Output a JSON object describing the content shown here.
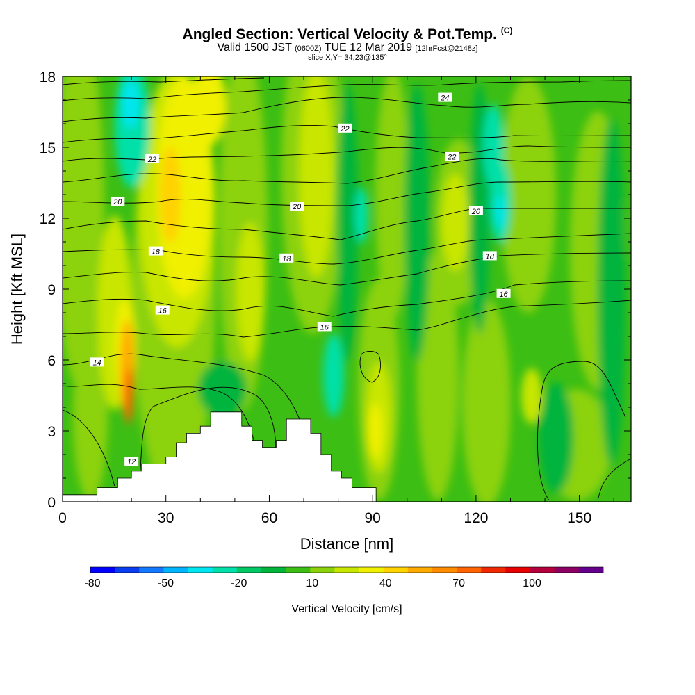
{
  "header": {
    "title": "Angled Section: Vertical Velocity & Pot.Temp.",
    "title_units": "(C)",
    "subtitle_main": "Valid 1500 JST",
    "subtitle_utc": "(0600Z)",
    "subtitle_date": "TUE 12 Mar 2019",
    "subtitle_fcst": "[12hrFcst@2148z]",
    "slice": "slice X,Y= 34,23@135°"
  },
  "chart_data": {
    "type": "heatmap",
    "xlabel": "Distance [nm]",
    "ylabel": "Height [Kft MSL]",
    "xlim": [
      0,
      165
    ],
    "ylim": [
      0,
      18
    ],
    "xticks": [
      "0",
      "30",
      "60",
      "90",
      "120",
      "150"
    ],
    "yticks": [
      "0",
      "3",
      "6",
      "9",
      "12",
      "15",
      "18"
    ],
    "colorbar": {
      "label": "Vertical Velocity [cm/s]",
      "ticks": [
        "-80",
        "-50",
        "-20",
        "10",
        "40",
        "70",
        "100"
      ],
      "colors": [
        "#0000ff",
        "#0a3cf0",
        "#1478ff",
        "#00b4ff",
        "#00e6f0",
        "#00e0a8",
        "#00c864",
        "#00b43c",
        "#3cbe14",
        "#8cd20a",
        "#c8e600",
        "#f0f000",
        "#ffd200",
        "#ffaa00",
        "#ff8c00",
        "#ff6400",
        "#f02800",
        "#e60000",
        "#b4003c",
        "#8c0064",
        "#64008c"
      ]
    },
    "terrain_profile_kft": [
      [
        0,
        0.3
      ],
      [
        10,
        0.3
      ],
      [
        10,
        0.6
      ],
      [
        16,
        0.6
      ],
      [
        16,
        1.0
      ],
      [
        20,
        1.0
      ],
      [
        20,
        1.3
      ],
      [
        23,
        1.3
      ],
      [
        23,
        1.6
      ],
      [
        30,
        1.6
      ],
      [
        30,
        1.9
      ],
      [
        33,
        1.9
      ],
      [
        33,
        2.5
      ],
      [
        36,
        2.5
      ],
      [
        36,
        2.9
      ],
      [
        40,
        2.9
      ],
      [
        40,
        3.2
      ],
      [
        43,
        3.2
      ],
      [
        43,
        3.8
      ],
      [
        52,
        3.8
      ],
      [
        52,
        3.2
      ],
      [
        55,
        3.2
      ],
      [
        55,
        2.6
      ],
      [
        58,
        2.6
      ],
      [
        58,
        2.3
      ],
      [
        62,
        2.3
      ],
      [
        62,
        2.6
      ],
      [
        65,
        2.6
      ],
      [
        65,
        3.5
      ],
      [
        72,
        3.5
      ],
      [
        72,
        2.9
      ],
      [
        75,
        2.9
      ],
      [
        75,
        2.0
      ],
      [
        78,
        2.0
      ],
      [
        78,
        1.3
      ],
      [
        81,
        1.3
      ],
      [
        81,
        1.0
      ],
      [
        84,
        1.0
      ],
      [
        84,
        0.6
      ],
      [
        91,
        0.6
      ],
      [
        91,
        0
      ]
    ],
    "theta_contours": [
      {
        "label": "12",
        "x": 20,
        "y": 1.7
      },
      {
        "label": "14",
        "x": 10,
        "y": 5.9
      },
      {
        "label": "16",
        "x": 29,
        "y": 8.1
      },
      {
        "label": "16",
        "x": 76,
        "y": 7.4
      },
      {
        "label": "16",
        "x": 128,
        "y": 8.8
      },
      {
        "label": "18",
        "x": 27,
        "y": 10.6
      },
      {
        "label": "18",
        "x": 65,
        "y": 10.3
      },
      {
        "label": "18",
        "x": 124,
        "y": 10.4
      },
      {
        "label": "20",
        "x": 16,
        "y": 12.7
      },
      {
        "label": "20",
        "x": 68,
        "y": 12.5
      },
      {
        "label": "20",
        "x": 120,
        "y": 12.3
      },
      {
        "label": "22",
        "x": 26,
        "y": 14.5
      },
      {
        "label": "22",
        "x": 82,
        "y": 15.8
      },
      {
        "label": "22",
        "x": 113,
        "y": 14.6
      },
      {
        "label": "24",
        "x": 111,
        "y": 17.1
      }
    ]
  }
}
